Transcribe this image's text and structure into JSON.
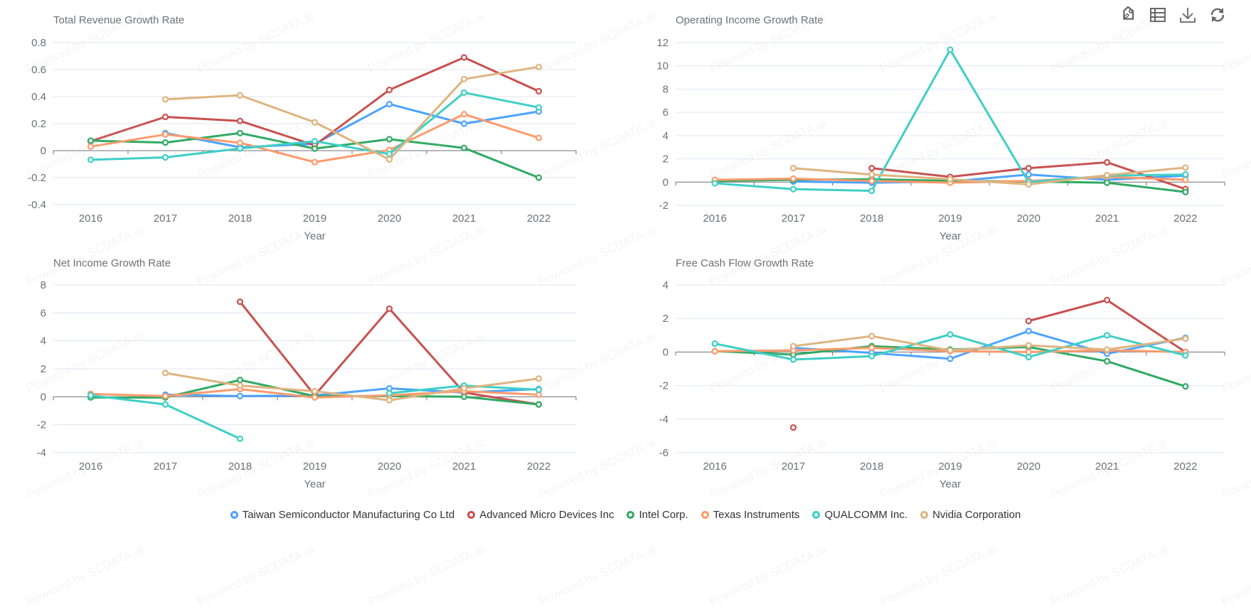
{
  "toolbar": {
    "items": [
      {
        "name": "tag-icon",
        "label": "Mark"
      },
      {
        "name": "data-view-icon",
        "label": "Data View"
      },
      {
        "name": "download-icon",
        "label": "Save as Image"
      },
      {
        "name": "refresh-icon",
        "label": "Restore"
      }
    ]
  },
  "watermark_text": "Powered by SCDATA.ai",
  "series_meta": [
    {
      "name": "Taiwan Semiconductor Manufacturing Co Ltd",
      "color": "#4da3ff"
    },
    {
      "name": "Advanced Micro Devices Inc",
      "color": "#c9504f"
    },
    {
      "name": "Intel Corp.",
      "color": "#2faa62"
    },
    {
      "name": "Texas Instruments",
      "color": "#ff9a6c"
    },
    {
      "name": "QUALCOMM Inc.",
      "color": "#3ecfc6"
    },
    {
      "name": "Nvidia Corporation",
      "color": "#deb47f"
    }
  ],
  "legend": {
    "items": [
      "Taiwan Semiconductor Manufacturing Co Ltd",
      "Advanced Micro Devices Inc",
      "Intel Corp.",
      "Texas Instruments",
      "QUALCOMM Inc.",
      "Nvidia Corporation"
    ]
  },
  "chart_data": [
    {
      "type": "line",
      "title": "Total Revenue Growth Rate",
      "xlabel": "Year",
      "ylabel": "",
      "categories": [
        "2016",
        "2017",
        "2018",
        "2019",
        "2020",
        "2021",
        "2022"
      ],
      "ylim": [
        -0.4,
        0.8
      ],
      "yticks": [
        -0.4,
        -0.2,
        0,
        0.2,
        0.4,
        0.6,
        0.8
      ],
      "ytick_labels": [
        "-0.4",
        "-0.2",
        "0",
        "0.2",
        "0.4",
        "0.6",
        "0.8"
      ],
      "grid": true,
      "series": [
        {
          "name": "Taiwan Semiconductor Manufacturing Co Ltd",
          "values": [
            null,
            0.13,
            0.025,
            0.05,
            0.345,
            0.2,
            0.29
          ]
        },
        {
          "name": "Advanced Micro Devices Inc",
          "values": [
            0.07,
            0.25,
            0.22,
            0.04,
            0.45,
            0.69,
            0.44
          ]
        },
        {
          "name": "Intel Corp.",
          "values": [
            0.074,
            0.06,
            0.13,
            0.015,
            0.085,
            0.02,
            -0.2
          ]
        },
        {
          "name": "Texas Instruments",
          "values": [
            0.03,
            0.12,
            0.058,
            -0.085,
            0.005,
            0.27,
            0.095
          ]
        },
        {
          "name": "QUALCOMM Inc.",
          "values": [
            -0.068,
            -0.05,
            0.016,
            0.07,
            -0.025,
            0.43,
            0.32
          ]
        },
        {
          "name": "Nvidia Corporation",
          "values": [
            null,
            0.38,
            0.41,
            0.21,
            -0.065,
            0.53,
            0.62
          ]
        }
      ]
    },
    {
      "type": "line",
      "title": "Operating Income Growth Rate",
      "xlabel": "Year",
      "ylabel": "",
      "categories": [
        "2016",
        "2017",
        "2018",
        "2019",
        "2020",
        "2021",
        "2022"
      ],
      "ylim": [
        -2,
        12
      ],
      "yticks": [
        -2,
        0,
        2,
        4,
        6,
        8,
        10,
        12
      ],
      "ytick_labels": [
        "-2",
        "0",
        "2",
        "4",
        "6",
        "8",
        "10",
        "12"
      ],
      "grid": true,
      "series": [
        {
          "name": "Taiwan Semiconductor Manufacturing Co Ltd",
          "values": [
            null,
            0.05,
            -0.05,
            0.05,
            0.65,
            0.2,
            0.55
          ]
        },
        {
          "name": "Advanced Micro Devices Inc",
          "values": [
            null,
            null,
            1.2,
            0.45,
            1.2,
            1.7,
            -0.6
          ]
        },
        {
          "name": "Intel Corp.",
          "values": [
            0.1,
            0.2,
            0.25,
            0.1,
            0.05,
            -0.05,
            -0.85
          ]
        },
        {
          "name": "Texas Instruments",
          "values": [
            0.2,
            0.3,
            0.1,
            -0.05,
            0.1,
            0.45,
            0.2
          ]
        },
        {
          "name": "QUALCOMM Inc.",
          "values": [
            -0.1,
            -0.6,
            -0.75,
            11.4,
            0.0,
            0.55,
            0.65
          ]
        },
        {
          "name": "Nvidia Corporation",
          "values": [
            null,
            1.2,
            0.65,
            0.25,
            -0.2,
            0.6,
            1.25
          ]
        }
      ]
    },
    {
      "type": "line",
      "title": "Net Income Growth Rate",
      "xlabel": "Year",
      "ylabel": "",
      "categories": [
        "2016",
        "2017",
        "2018",
        "2019",
        "2020",
        "2021",
        "2022"
      ],
      "ylim": [
        -4,
        8
      ],
      "yticks": [
        -4,
        -2,
        0,
        2,
        4,
        6,
        8
      ],
      "ytick_labels": [
        "-4",
        "-2",
        "0",
        "2",
        "4",
        "6",
        "8"
      ],
      "grid": true,
      "series": [
        {
          "name": "Taiwan Semiconductor Manufacturing Co Ltd",
          "values": [
            null,
            0.15,
            0.05,
            0.1,
            0.6,
            0.3,
            0.55
          ]
        },
        {
          "name": "Advanced Micro Devices Inc",
          "values": [
            null,
            null,
            6.8,
            0.1,
            6.3,
            0.3,
            -0.55
          ]
        },
        {
          "name": "Intel Corp.",
          "values": [
            -0.05,
            -0.05,
            1.2,
            0.05,
            0.05,
            0.0,
            -0.55
          ]
        },
        {
          "name": "Texas Instruments",
          "values": [
            0.2,
            0.05,
            0.55,
            -0.05,
            0.1,
            0.4,
            0.15
          ]
        },
        {
          "name": "QUALCOMM Inc.",
          "values": [
            0.1,
            -0.55,
            -3.0,
            null,
            0.25,
            0.8,
            0.5
          ]
        },
        {
          "name": "Nvidia Corporation",
          "values": [
            null,
            1.7,
            0.8,
            0.4,
            -0.25,
            0.6,
            1.3
          ]
        }
      ]
    },
    {
      "type": "line",
      "title": "Free Cash Flow Growth Rate",
      "xlabel": "Year",
      "ylabel": "",
      "categories": [
        "2016",
        "2017",
        "2018",
        "2019",
        "2020",
        "2021",
        "2022"
      ],
      "ylim": [
        -6,
        4
      ],
      "yticks": [
        -6,
        -4,
        -2,
        0,
        2,
        4
      ],
      "ytick_labels": [
        "-6",
        "-4",
        "-2",
        "0",
        "2",
        "4"
      ],
      "grid": true,
      "series": [
        {
          "name": "Taiwan Semiconductor Manufacturing Co Ltd",
          "values": [
            null,
            0.25,
            -0.05,
            -0.4,
            1.25,
            -0.1,
            0.85
          ]
        },
        {
          "name": "Advanced Micro Devices Inc",
          "values": [
            null,
            -4.5,
            null,
            null,
            1.85,
            3.1,
            0.0
          ]
        },
        {
          "name": "Intel Corp.",
          "values": [
            0.05,
            -0.15,
            0.35,
            0.15,
            0.3,
            -0.55,
            -2.05
          ]
        },
        {
          "name": "Texas Instruments",
          "values": [
            0.05,
            0.1,
            0.25,
            0.05,
            0.0,
            0.1,
            0.0
          ]
        },
        {
          "name": "QUALCOMM Inc.",
          "values": [
            0.5,
            -0.45,
            -0.25,
            1.05,
            -0.3,
            1.0,
            -0.2
          ]
        },
        {
          "name": "Nvidia Corporation",
          "values": [
            null,
            0.35,
            0.95,
            0.1,
            0.4,
            0.15,
            0.8
          ]
        }
      ]
    }
  ]
}
